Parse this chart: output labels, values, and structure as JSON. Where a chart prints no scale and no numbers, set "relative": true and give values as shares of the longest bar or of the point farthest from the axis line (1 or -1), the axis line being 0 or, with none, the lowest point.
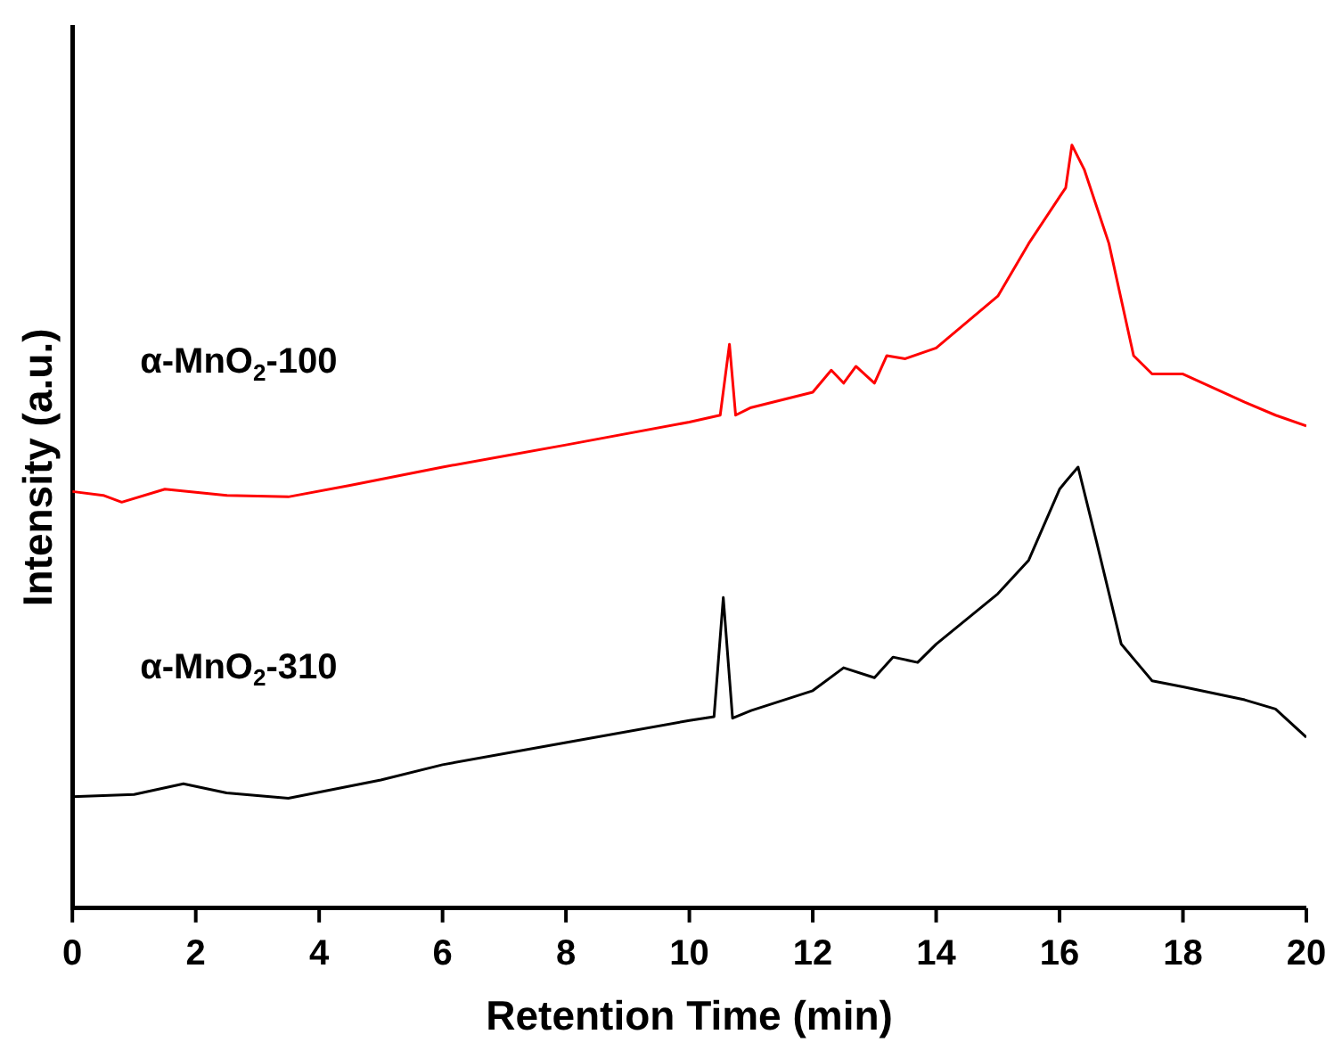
{
  "chart_data": {
    "type": "line",
    "xlabel": "Retention Time (min)",
    "ylabel": "Intensity (a.u.)",
    "relative": true,
    "xlim": [
      0,
      20
    ],
    "xticks": [
      0,
      2,
      4,
      6,
      8,
      10,
      12,
      14,
      16,
      18,
      20
    ],
    "grid": false,
    "legend": false,
    "marker": "none",
    "line_style": "solid",
    "series": [
      {
        "name": "α-MnO$_{2}$-100",
        "color": "#ff0000",
        "x": [
          0,
          0.5,
          0.8,
          1.5,
          2.5,
          3.5,
          4.5,
          6,
          8,
          10,
          10.5,
          10.65,
          10.75,
          11,
          12,
          12.3,
          12.5,
          12.7,
          13,
          13.2,
          13.5,
          14,
          15,
          15.5,
          16,
          16.1,
          16.2,
          16.4,
          16.8,
          17.2,
          17.5,
          18,
          19,
          19.5,
          20
        ],
        "values": [
          0.546,
          0.541,
          0.532,
          0.549,
          0.541,
          0.539,
          0.554,
          0.578,
          0.607,
          0.637,
          0.646,
          0.739,
          0.646,
          0.656,
          0.676,
          0.705,
          0.688,
          0.71,
          0.688,
          0.724,
          0.72,
          0.734,
          0.802,
          0.871,
          0.932,
          0.944,
          1,
          0.968,
          0.871,
          0.724,
          0.7,
          0.7,
          0.663,
          0.646,
          0.632
        ]
      },
      {
        "name": "α-MnO$_{2}$-310",
        "color": "#000000",
        "x": [
          0,
          1,
          1.8,
          2.5,
          3.5,
          5,
          6,
          8,
          10,
          10.4,
          10.55,
          10.7,
          11,
          12,
          12.5,
          13,
          13.3,
          13.7,
          14,
          15,
          15.5,
          16,
          16.1,
          16.3,
          16.6,
          17,
          17.5,
          18,
          19,
          19.5,
          20
        ],
        "values": [
          0.146,
          0.149,
          0.163,
          0.151,
          0.144,
          0.168,
          0.188,
          0.217,
          0.246,
          0.251,
          0.407,
          0.249,
          0.259,
          0.285,
          0.315,
          0.302,
          0.329,
          0.322,
          0.346,
          0.412,
          0.456,
          0.549,
          0.559,
          0.578,
          0.48,
          0.346,
          0.298,
          0.29,
          0.273,
          0.261,
          0.224
        ]
      }
    ]
  }
}
